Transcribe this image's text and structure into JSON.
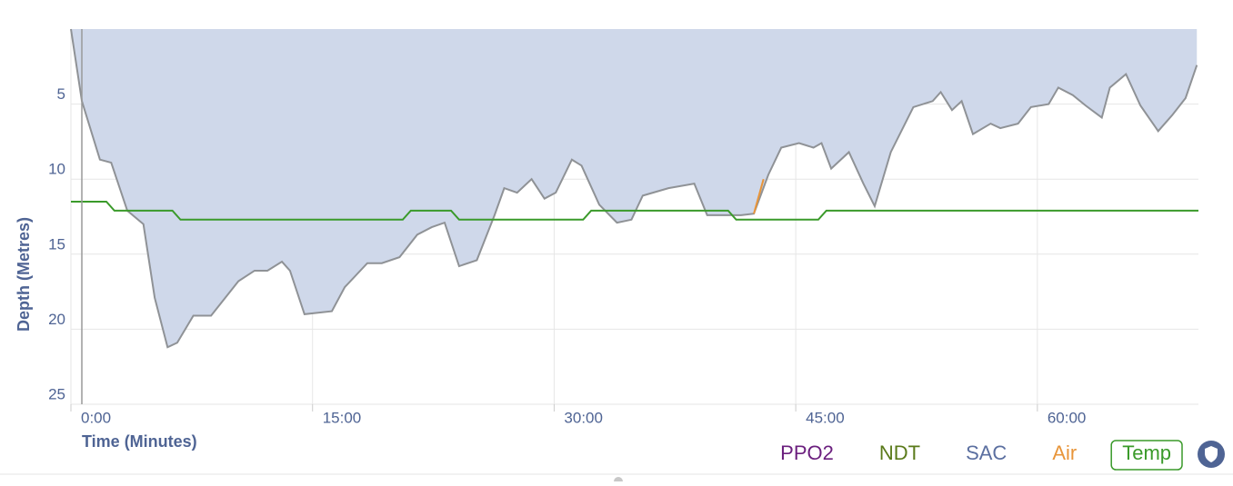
{
  "chart_data": {
    "type": "area",
    "x_label": "Time (Minutes)",
    "y_label": "Depth (Metres)",
    "xlim": [
      0,
      70
    ],
    "ylim": [
      0,
      25
    ],
    "y_inverted": true,
    "grid": true,
    "xticks": [
      {
        "value": 0,
        "label": "0:00"
      },
      {
        "value": 15,
        "label": "15:00"
      },
      {
        "value": 30,
        "label": "30:00"
      },
      {
        "value": 45,
        "label": "45:00"
      },
      {
        "value": 60,
        "label": "60:00"
      }
    ],
    "yticks": [
      5,
      10,
      15,
      20,
      25
    ],
    "series": [
      {
        "color": "#8f9296",
        "fill": "#cfd8ea",
        "x": [
          0,
          0.68,
          1.8,
          2.5,
          3.5,
          4.5,
          5.2,
          6.0,
          6.6,
          7.6,
          8.7,
          10.4,
          11.4,
          12.2,
          13.1,
          13.6,
          14.5,
          16.2,
          17.0,
          18.4,
          19.3,
          20.4,
          21.5,
          22.4,
          23.2,
          24.1,
          25.2,
          26.3,
          26.9,
          27.7,
          28.6,
          29.4,
          30.1,
          31.1,
          31.7,
          32.8,
          33.9,
          34.8,
          35.5,
          37.1,
          38.7,
          39.5,
          40.7,
          41.6,
          42.4,
          43.3,
          44.1,
          45.2,
          46.1,
          46.6,
          47.2,
          48.3,
          49.2,
          49.9,
          50.9,
          52.3,
          53.5,
          54.0,
          54.7,
          55.3,
          56.0,
          57.1,
          57.7,
          58.8,
          59.6,
          60.7,
          61.3,
          62.2,
          63.0,
          64.0,
          64.5,
          65.5,
          66.4,
          67.5,
          68.4,
          69.2,
          69.9
        ],
        "values": [
          0,
          4.8,
          8.7,
          8.9,
          12.1,
          13.0,
          17.9,
          21.2,
          20.9,
          19.1,
          19.1,
          16.8,
          16.1,
          16.1,
          15.5,
          16.1,
          19.0,
          18.8,
          17.2,
          15.6,
          15.6,
          15.2,
          13.7,
          13.2,
          12.9,
          15.8,
          15.4,
          12.4,
          10.6,
          10.9,
          10.0,
          11.3,
          10.9,
          8.7,
          9.1,
          11.7,
          12.9,
          12.7,
          11.1,
          10.6,
          10.3,
          12.4,
          12.4,
          12.4,
          12.3,
          9.7,
          7.9,
          7.6,
          7.9,
          7.6,
          9.3,
          8.2,
          10.3,
          11.8,
          8.2,
          5.2,
          4.8,
          4.2,
          5.4,
          4.8,
          7.0,
          6.3,
          6.6,
          6.3,
          5.2,
          5.0,
          3.9,
          4.4,
          5.1,
          5.9,
          3.9,
          3.0,
          5.1,
          6.8,
          5.7,
          4.6,
          2.4
        ]
      },
      {
        "color": "#e8953a",
        "x": [
          42.4,
          43.0
        ],
        "values": [
          12.3,
          10.0
        ]
      },
      {
        "color": "#3a9a2a",
        "x": [
          0,
          2.2,
          2.7,
          6.3,
          6.8,
          20.6,
          21.1,
          23.6,
          24.1,
          31.8,
          32.3,
          40.8,
          41.3,
          46.4,
          46.9,
          70
        ],
        "values": [
          11.5,
          11.5,
          12.1,
          12.1,
          12.7,
          12.7,
          12.1,
          12.1,
          12.7,
          12.7,
          12.1,
          12.1,
          12.7,
          12.7,
          12.1,
          12.1
        ]
      }
    ],
    "legend_items": [
      {
        "name": "PPO2",
        "color": "#6b1f7e",
        "active": false
      },
      {
        "name": "NDT",
        "color": "#5a7a1a",
        "active": false
      },
      {
        "name": "SAC",
        "color": "#5b6fa0",
        "active": false
      },
      {
        "name": "Air",
        "color": "#e8953a",
        "active": false
      },
      {
        "name": "Temp",
        "color": "#3a9a2a",
        "active": true
      }
    ]
  }
}
